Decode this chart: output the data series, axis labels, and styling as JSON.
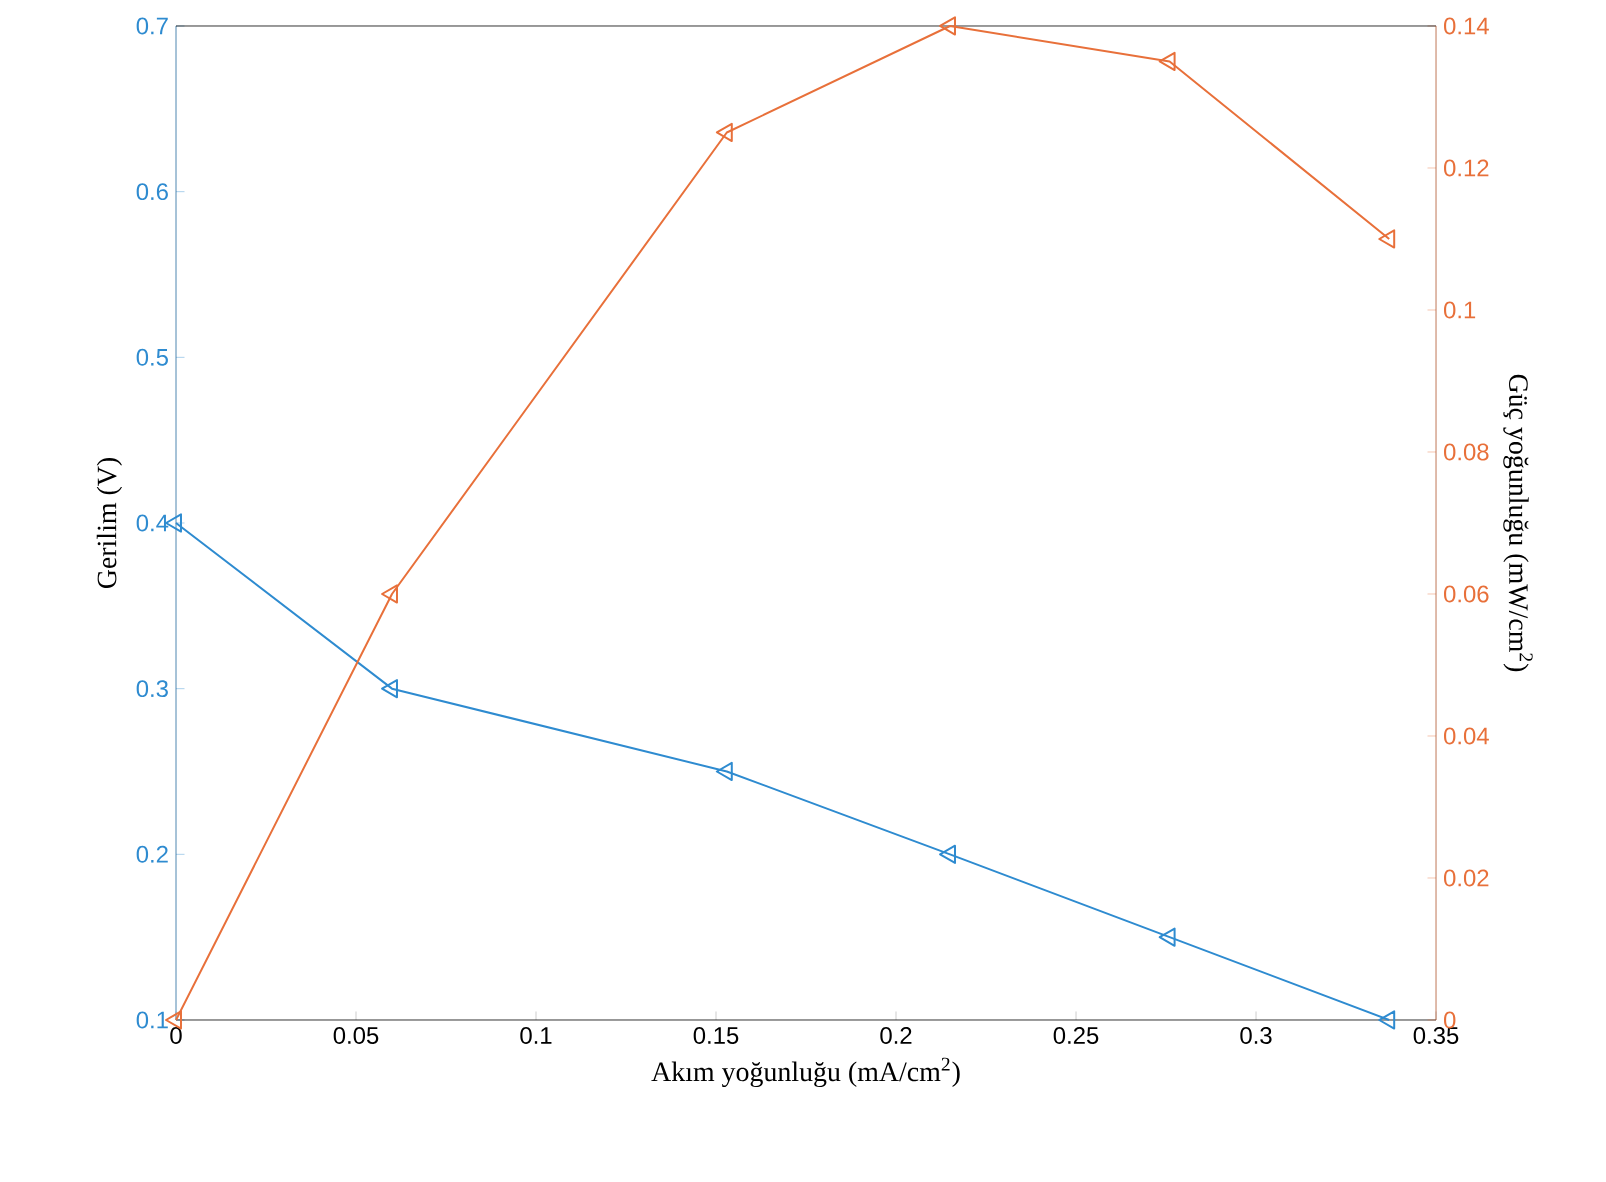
{
  "chart_data": {
    "type": "line",
    "xlabel": "Akım yoğunluğu (mA/cm$^{2}$)",
    "ylabel": "Gerilim (V)",
    "y2label": "Güç yoğunluğu (mW/cm$^{2}$)",
    "x": [
      0,
      0.06,
      0.153,
      0.215,
      0.276,
      0.337
    ],
    "series": [
      {
        "color": "#2e8bd0",
        "values": [
          0.4,
          0.3,
          0.25,
          0.2,
          0.15,
          0.1
        ]
      },
      {
        "color": "#e8703a",
        "axis": "y2",
        "values": [
          0,
          0.06,
          0.125,
          0.14,
          0.135,
          0.11
        ]
      }
    ],
    "xlim": [
      0,
      0.35
    ],
    "xticks": [
      0,
      0.05,
      0.1,
      0.15,
      0.2,
      0.25,
      0.3,
      0.35
    ],
    "ylim": [
      0.1,
      0.7
    ],
    "yticks": [
      0.1,
      0.2,
      0.3,
      0.4,
      0.5,
      0.6,
      0.7
    ],
    "y2lim": [
      0,
      0.14
    ],
    "y2ticks": [
      0,
      0.02,
      0.04,
      0.06,
      0.08,
      0.1,
      0.12,
      0.14
    ],
    "marker": "triangle",
    "line_style": "solid"
  }
}
